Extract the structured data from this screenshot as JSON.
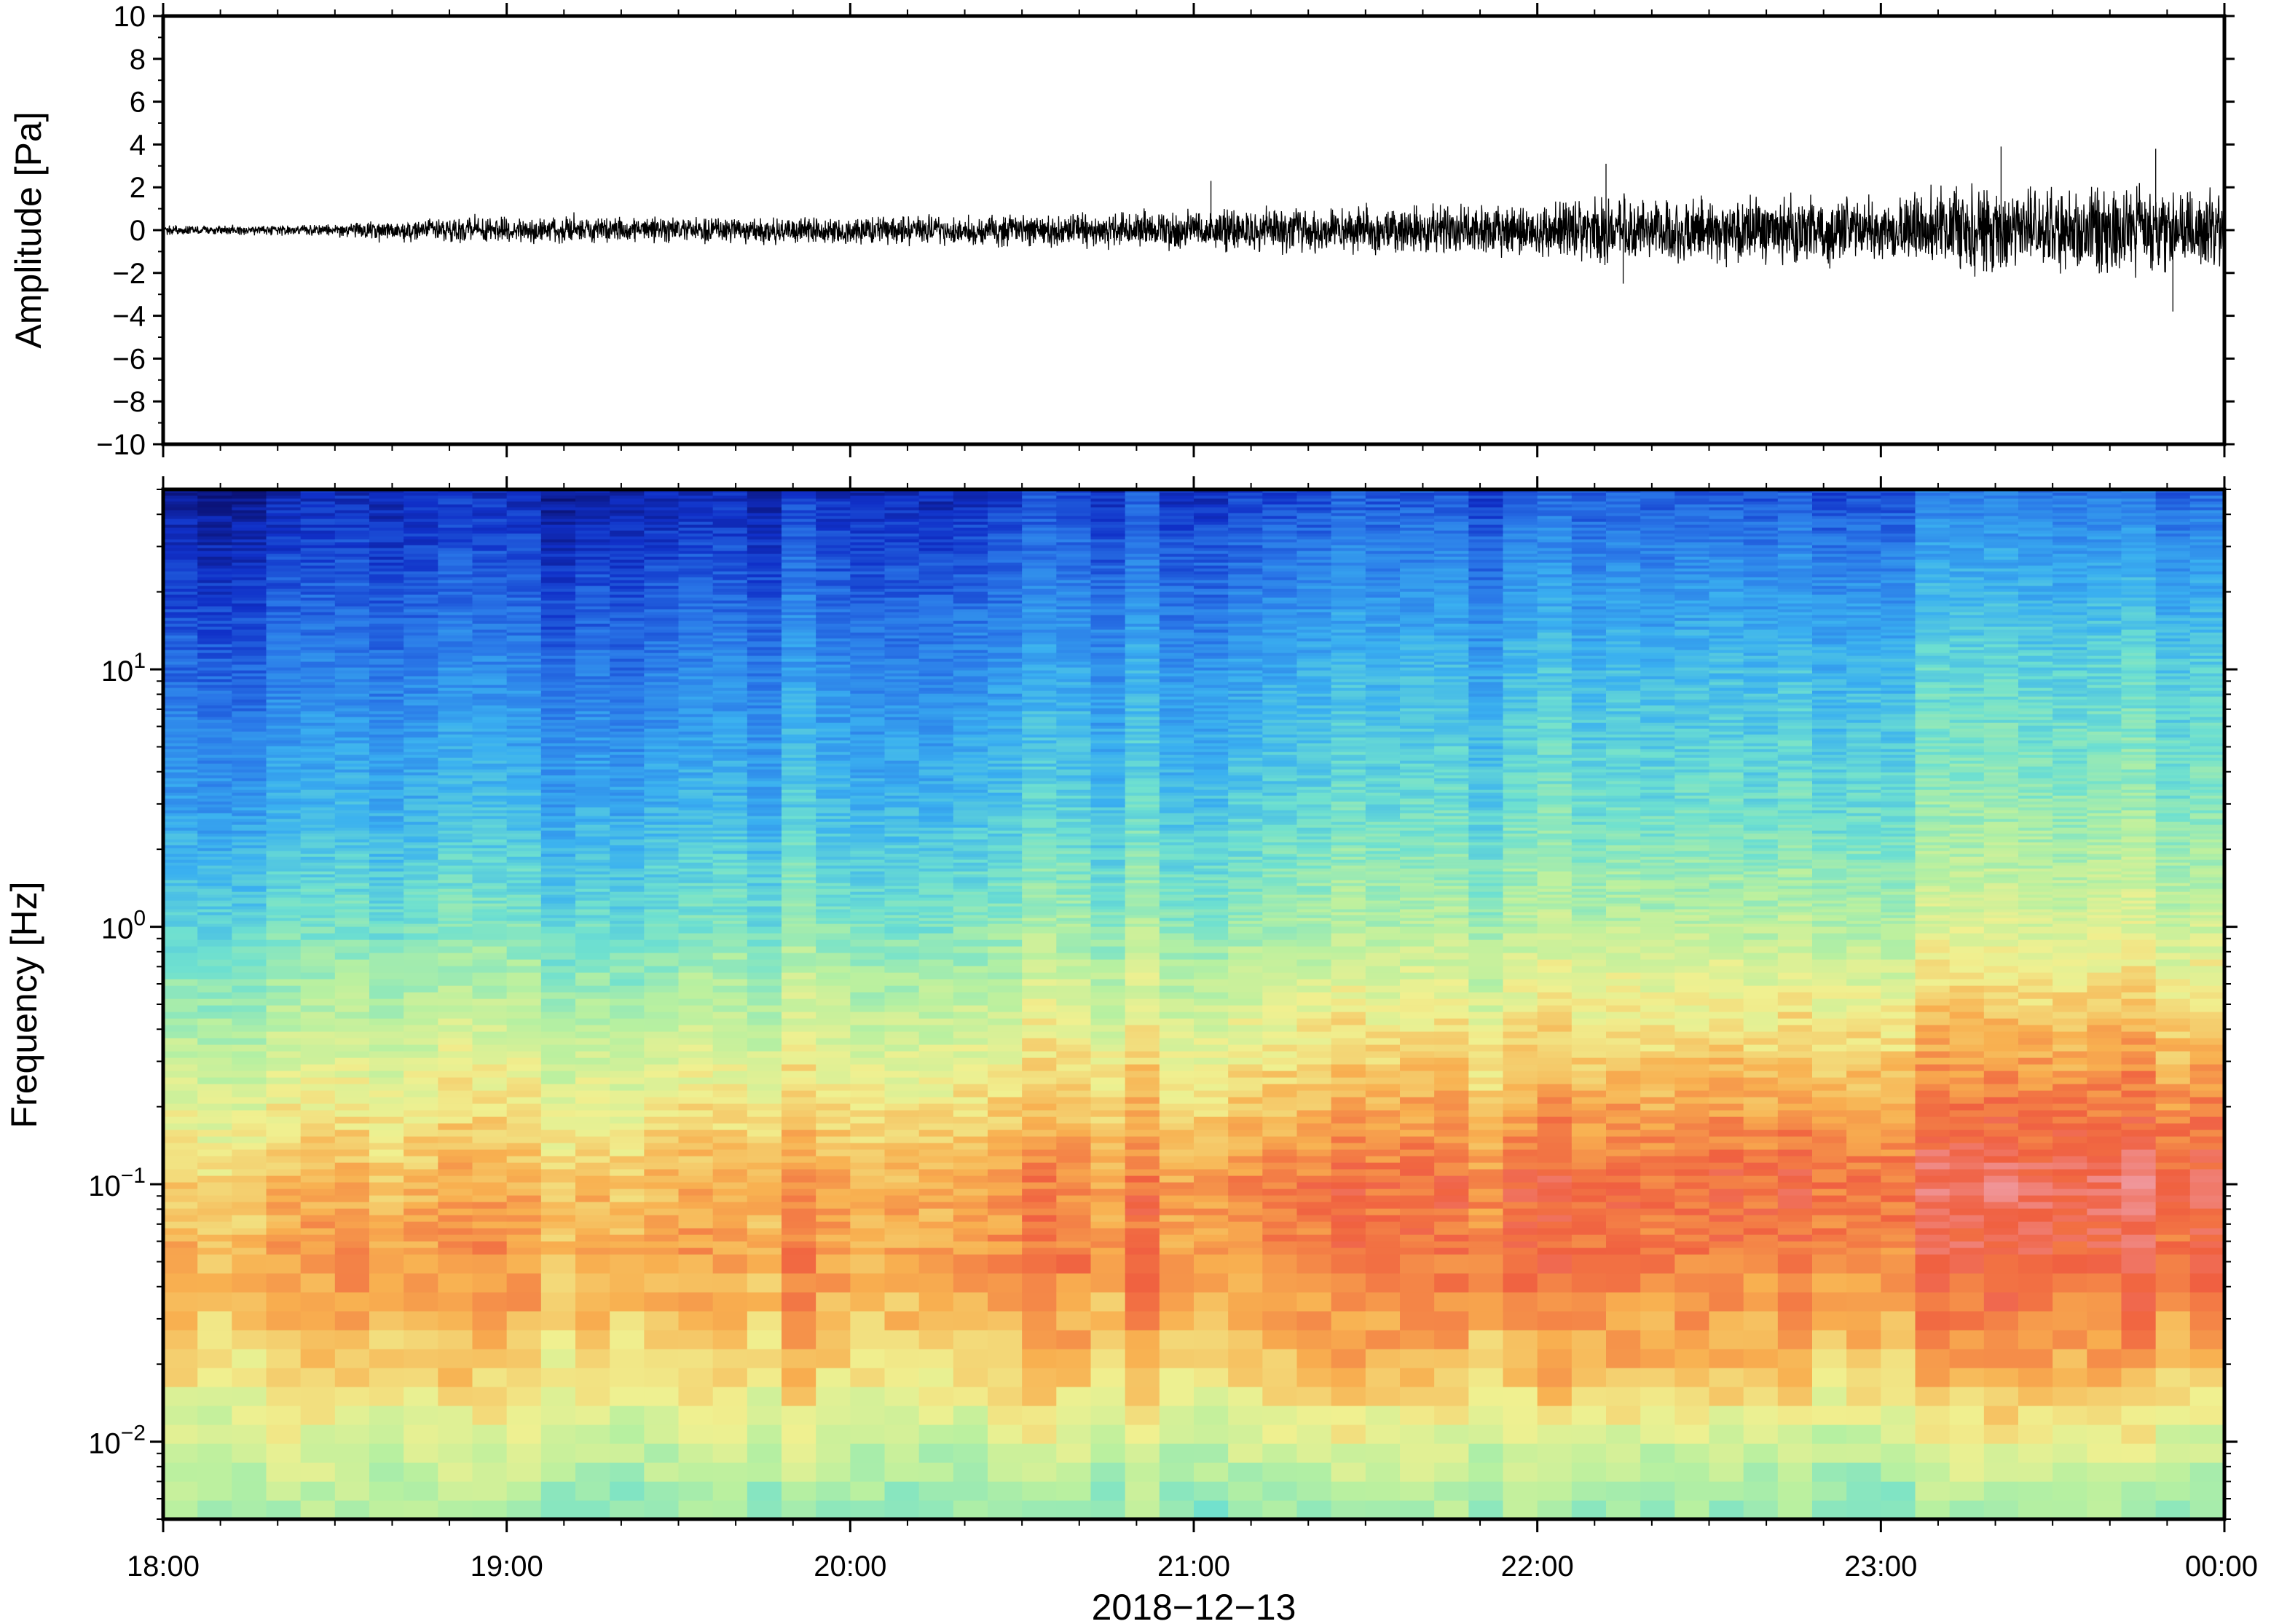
{
  "chart_data": [
    {
      "type": "line",
      "panel": "waveform",
      "ylabel": "Amplitude [Pa]",
      "ylim": [
        -10,
        10
      ],
      "yticks": [
        "10",
        "8",
        "6",
        "4",
        "2",
        "0",
        "−2",
        "−4",
        "−6",
        "−8",
        "−10"
      ],
      "ytick_values": [
        10,
        8,
        6,
        4,
        2,
        0,
        -2,
        -4,
        -6,
        -8,
        -10
      ],
      "x_range": [
        "18:00",
        "00:00"
      ],
      "envelope": {
        "x_hours": [
          0,
          0.5,
          0.7,
          1.0,
          1.5,
          2.0,
          2.5,
          3.0,
          3.5,
          4.0,
          4.2,
          4.5,
          5.0,
          5.3,
          5.5,
          5.8,
          6.0
        ],
        "amplitude_max": [
          0.25,
          0.3,
          0.6,
          0.7,
          0.7,
          0.75,
          0.9,
          1.1,
          1.3,
          1.4,
          1.8,
          1.8,
          1.9,
          2.4,
          2.2,
          2.4,
          2.2
        ],
        "peaks": [
          {
            "x_hours": 3.05,
            "value": 2.3
          },
          {
            "x_hours": 4.2,
            "value": 3.1
          },
          {
            "x_hours": 4.25,
            "value": -2.5
          },
          {
            "x_hours": 5.35,
            "value": 3.9
          },
          {
            "x_hours": 5.8,
            "value": 3.8
          },
          {
            "x_hours": 5.85,
            "value": -3.8
          }
        ]
      },
      "color": "#000000"
    },
    {
      "type": "heatmap",
      "panel": "spectrogram",
      "ylabel": "Frequency [Hz]",
      "yscale": "log",
      "ylim": [
        0.005,
        50
      ],
      "yticks": [
        {
          "value": 10,
          "base": "10",
          "exp": "1"
        },
        {
          "value": 1,
          "base": "10",
          "exp": "0"
        },
        {
          "value": 0.1,
          "base": "10",
          "exp": "−1"
        },
        {
          "value": 0.01,
          "base": "10",
          "exp": "−2"
        }
      ],
      "xlabel": "2018−12−13",
      "xticks": [
        "18:00",
        "19:00",
        "20:00",
        "21:00",
        "22:00",
        "23:00",
        "00:00"
      ],
      "xtick_hours": [
        0,
        1,
        2,
        3,
        4,
        5,
        6
      ],
      "x_range_hours": [
        0,
        6
      ],
      "time_columns": 60,
      "colormap": [
        "#0a1070",
        "#1030c8",
        "#2a78e8",
        "#3ab0f0",
        "#6ee0d0",
        "#b8f0a0",
        "#f0f090",
        "#f8b050",
        "#f06040",
        "#f09aa0"
      ],
      "colormap_name": "rainbow",
      "level_profile": {
        "freq_hz": [
          0.005,
          0.01,
          0.02,
          0.05,
          0.1,
          0.3,
          1,
          3,
          10,
          30,
          50
        ],
        "level_start": [
          0.52,
          0.6,
          0.7,
          0.78,
          0.72,
          0.58,
          0.42,
          0.3,
          0.2,
          0.1,
          0.05
        ],
        "level_end": [
          0.5,
          0.62,
          0.78,
          0.88,
          0.94,
          0.8,
          0.62,
          0.5,
          0.42,
          0.3,
          0.22
        ]
      }
    }
  ]
}
